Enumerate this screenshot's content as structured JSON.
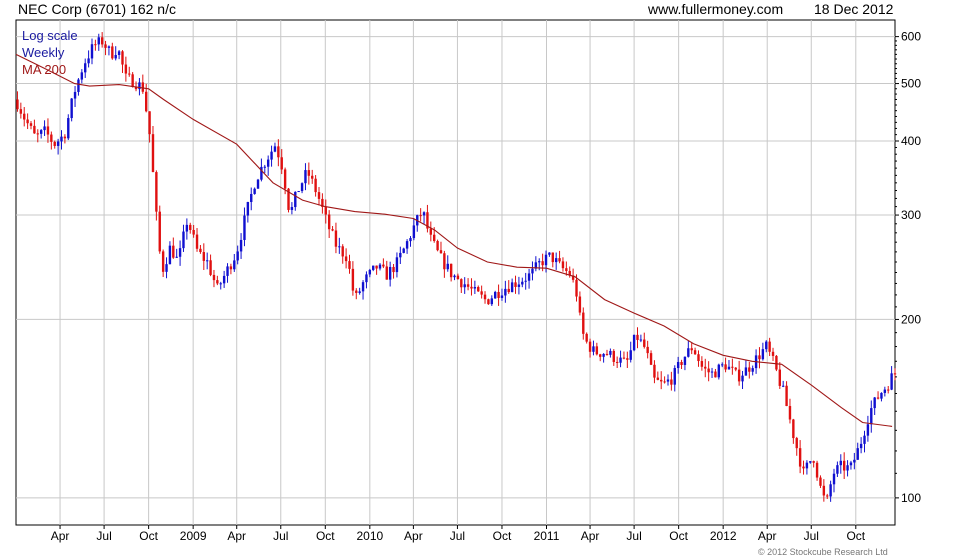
{
  "header": {
    "title": "NEC Corp (6701) 162 n/c",
    "source": "www.fullermoney.com",
    "date": "18 Dec 2012"
  },
  "legend": {
    "scale": "Log scale",
    "period": "Weekly",
    "ma": "MA 200"
  },
  "footer": {
    "copyright": "© 2012 Stockcube Research Ltd"
  },
  "colors": {
    "up": "#1010d0",
    "down": "#e01010",
    "ma": "#a01818",
    "grid": "#c8c8c8",
    "axis": "#000000",
    "legend_scale": "#1a1aa0",
    "legend_period": "#1a1aa0",
    "legend_ma": "#a01818"
  },
  "chart_data": {
    "type": "candlestick",
    "scale": "log",
    "ylim": [
      90,
      640
    ],
    "yticks": [
      100,
      200,
      300,
      400,
      500,
      600
    ],
    "x_start": "2008-01-01",
    "x_end": "2012-12-21",
    "xticks": [
      {
        "date": "2008-04-01",
        "label": "Apr"
      },
      {
        "date": "2008-07-01",
        "label": "Jul"
      },
      {
        "date": "2008-10-01",
        "label": "Oct"
      },
      {
        "date": "2009-01-01",
        "label": "2009"
      },
      {
        "date": "2009-04-01",
        "label": "Apr"
      },
      {
        "date": "2009-07-01",
        "label": "Jul"
      },
      {
        "date": "2009-10-01",
        "label": "Oct"
      },
      {
        "date": "2010-01-01",
        "label": "2010"
      },
      {
        "date": "2010-04-01",
        "label": "Apr"
      },
      {
        "date": "2010-07-01",
        "label": "Jul"
      },
      {
        "date": "2010-10-01",
        "label": "Oct"
      },
      {
        "date": "2011-01-01",
        "label": "2011"
      },
      {
        "date": "2011-04-01",
        "label": "Apr"
      },
      {
        "date": "2011-07-01",
        "label": "Jul"
      },
      {
        "date": "2011-10-01",
        "label": "Oct"
      },
      {
        "date": "2012-01-01",
        "label": "2012"
      },
      {
        "date": "2012-04-01",
        "label": "Apr"
      },
      {
        "date": "2012-07-01",
        "label": "Jul"
      },
      {
        "date": "2012-10-01",
        "label": "Oct"
      }
    ],
    "price_path": [
      [
        "2008-01-01",
        470
      ],
      [
        "2008-01-20",
        435
      ],
      [
        "2008-02-10",
        405
      ],
      [
        "2008-03-01",
        415
      ],
      [
        "2008-03-20",
        395
      ],
      [
        "2008-04-10",
        410
      ],
      [
        "2008-05-01",
        485
      ],
      [
        "2008-05-20",
        540
      ],
      [
        "2008-06-10",
        580
      ],
      [
        "2008-06-28",
        590
      ],
      [
        "2008-07-15",
        560
      ],
      [
        "2008-07-29",
        575
      ],
      [
        "2008-08-15",
        510
      ],
      [
        "2008-09-01",
        505
      ],
      [
        "2008-09-20",
        490
      ],
      [
        "2008-10-05",
        400
      ],
      [
        "2008-10-15",
        310
      ],
      [
        "2008-10-28",
        240
      ],
      [
        "2008-11-15",
        265
      ],
      [
        "2008-12-01",
        250
      ],
      [
        "2008-12-20",
        295
      ],
      [
        "2009-01-10",
        260
      ],
      [
        "2009-01-30",
        250
      ],
      [
        "2009-02-20",
        225
      ],
      [
        "2009-03-10",
        240
      ],
      [
        "2009-04-01",
        260
      ],
      [
        "2009-04-20",
        300
      ],
      [
        "2009-05-10",
        345
      ],
      [
        "2009-05-30",
        370
      ],
      [
        "2009-06-20",
        395
      ],
      [
        "2009-07-05",
        360
      ],
      [
        "2009-07-20",
        300
      ],
      [
        "2009-08-05",
        330
      ],
      [
        "2009-08-25",
        355
      ],
      [
        "2009-09-15",
        325
      ],
      [
        "2009-10-05",
        290
      ],
      [
        "2009-10-25",
        265
      ],
      [
        "2009-11-15",
        255
      ],
      [
        "2009-12-01",
        215
      ],
      [
        "2009-12-20",
        232
      ],
      [
        "2010-01-15",
        245
      ],
      [
        "2010-02-05",
        238
      ],
      [
        "2010-02-25",
        248
      ],
      [
        "2010-03-15",
        265
      ],
      [
        "2010-04-05",
        290
      ],
      [
        "2010-04-20",
        305
      ],
      [
        "2010-05-05",
        275
      ],
      [
        "2010-05-25",
        255
      ],
      [
        "2010-06-20",
        238
      ],
      [
        "2010-07-15",
        230
      ],
      [
        "2010-08-05",
        222
      ],
      [
        "2010-08-30",
        215
      ],
      [
        "2010-09-20",
        222
      ],
      [
        "2010-10-15",
        228
      ],
      [
        "2010-11-05",
        232
      ],
      [
        "2010-11-30",
        238
      ],
      [
        "2010-12-20",
        250
      ],
      [
        "2011-01-10",
        256
      ],
      [
        "2011-01-30",
        245
      ],
      [
        "2011-02-20",
        238
      ],
      [
        "2011-03-05",
        220
      ],
      [
        "2011-03-12",
        198
      ],
      [
        "2011-03-20",
        185
      ],
      [
        "2011-04-10",
        176
      ],
      [
        "2011-05-01",
        176
      ],
      [
        "2011-05-25",
        172
      ],
      [
        "2011-06-15",
        168
      ],
      [
        "2011-07-05",
        188
      ],
      [
        "2011-07-25",
        178
      ],
      [
        "2011-08-10",
        158
      ],
      [
        "2011-08-30",
        155
      ],
      [
        "2011-09-20",
        160
      ],
      [
        "2011-10-10",
        172
      ],
      [
        "2011-10-30",
        180
      ],
      [
        "2011-11-20",
        165
      ],
      [
        "2011-12-10",
        162
      ],
      [
        "2012-01-05",
        168
      ],
      [
        "2012-01-30",
        160
      ],
      [
        "2012-02-20",
        165
      ],
      [
        "2012-03-10",
        172
      ],
      [
        "2012-03-30",
        180
      ],
      [
        "2012-04-15",
        168
      ],
      [
        "2012-05-05",
        150
      ],
      [
        "2012-05-25",
        128
      ],
      [
        "2012-06-15",
        110
      ],
      [
        "2012-07-05",
        118
      ],
      [
        "2012-07-20",
        104
      ],
      [
        "2012-08-01",
        97
      ],
      [
        "2012-08-15",
        110
      ],
      [
        "2012-09-01",
        113
      ],
      [
        "2012-09-20",
        112
      ],
      [
        "2012-10-10",
        123
      ],
      [
        "2012-10-30",
        140
      ],
      [
        "2012-11-20",
        150
      ],
      [
        "2012-12-05",
        155
      ],
      [
        "2012-12-18",
        162
      ]
    ],
    "ma200": [
      [
        "2008-01-01",
        560
      ],
      [
        "2008-03-01",
        530
      ],
      [
        "2008-05-01",
        500
      ],
      [
        "2008-06-01",
        495
      ],
      [
        "2008-08-01",
        498
      ],
      [
        "2008-10-01",
        490
      ],
      [
        "2008-11-01",
        470
      ],
      [
        "2009-01-01",
        435
      ],
      [
        "2009-04-01",
        395
      ],
      [
        "2009-06-15",
        340
      ],
      [
        "2009-08-15",
        318
      ],
      [
        "2009-10-01",
        310
      ],
      [
        "2009-12-01",
        304
      ],
      [
        "2010-02-01",
        301
      ],
      [
        "2010-04-01",
        296
      ],
      [
        "2010-05-15",
        283
      ],
      [
        "2010-07-01",
        264
      ],
      [
        "2010-09-01",
        250
      ],
      [
        "2010-11-01",
        245
      ],
      [
        "2011-01-01",
        244
      ],
      [
        "2011-03-01",
        236
      ],
      [
        "2011-05-01",
        216
      ],
      [
        "2011-07-01",
        205
      ],
      [
        "2011-09-01",
        195
      ],
      [
        "2011-11-01",
        182
      ],
      [
        "2012-01-01",
        174
      ],
      [
        "2012-03-01",
        170
      ],
      [
        "2012-05-01",
        168
      ],
      [
        "2012-07-01",
        155
      ],
      [
        "2012-09-01",
        142
      ],
      [
        "2012-10-15",
        134
      ],
      [
        "2012-12-15",
        132
      ]
    ]
  }
}
